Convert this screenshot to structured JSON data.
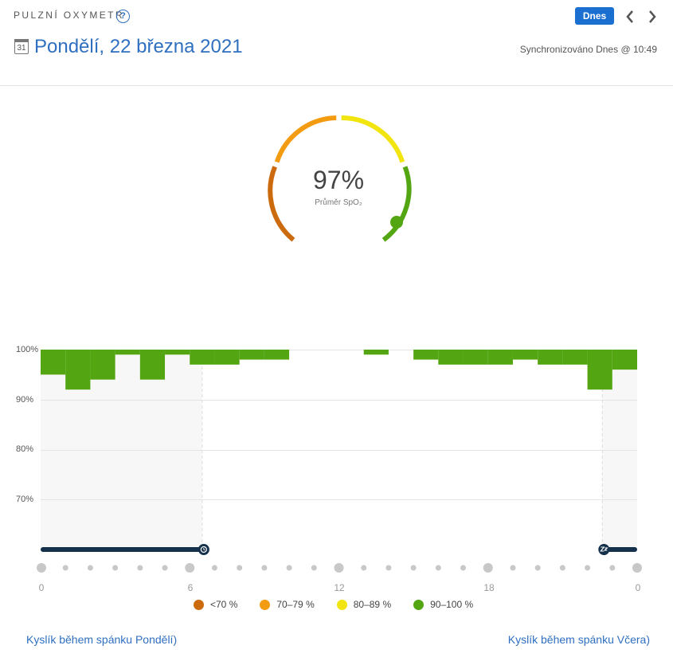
{
  "header": {
    "app_title": "PULZNÍ OXYMETR",
    "help_glyph": "?",
    "today_button": "Dnes",
    "prev_glyph": "‹",
    "next_glyph": "›",
    "calendar_day": "31",
    "date_title": "Pondělí, 22 března 2021",
    "sync_text": "Synchronizováno Dnes @ 10:49"
  },
  "gauge": {
    "value_text": "97%",
    "label": "Průměr SpO₂",
    "value": 97,
    "colors": {
      "dark_orange": "#cc6a0e",
      "orange": "#f39c12",
      "yellow": "#f1e40f",
      "green": "#53a612"
    }
  },
  "chart_data": {
    "type": "bar",
    "y_tick_labels": [
      "100%",
      "90%",
      "80%",
      "70%"
    ],
    "y_ticks": [
      100,
      90,
      80,
      70
    ],
    "ylim": [
      60,
      100
    ],
    "x_tick_labels": [
      "0",
      "6",
      "12",
      "18",
      "0"
    ],
    "bar_color": "#53a612",
    "bars": [
      {
        "hour": 0,
        "min": 95
      },
      {
        "hour": 1,
        "min": 92
      },
      {
        "hour": 2,
        "min": 94
      },
      {
        "hour": 3,
        "min": 99
      },
      {
        "hour": 4,
        "min": 94
      },
      {
        "hour": 5,
        "min": 99
      },
      {
        "hour": 6,
        "min": 97
      },
      {
        "hour": 7,
        "min": 97
      },
      {
        "hour": 8,
        "min": 98
      },
      {
        "hour": 9,
        "min": 98
      },
      {
        "hour": 13,
        "min": 99
      },
      {
        "hour": 15,
        "min": 98
      },
      {
        "hour": 16,
        "min": 97
      },
      {
        "hour": 17,
        "min": 97
      },
      {
        "hour": 18,
        "min": 97
      },
      {
        "hour": 19,
        "min": 98
      },
      {
        "hour": 20,
        "min": 97
      },
      {
        "hour": 21,
        "min": 97
      },
      {
        "hour": 22,
        "min": 92
      },
      {
        "hour": 23,
        "min": 96
      }
    ],
    "sleep_periods": [
      {
        "start": 0,
        "end": 6.5
      },
      {
        "start": 22.6,
        "end": 24
      }
    ],
    "sleep_bar_color": "#14304a"
  },
  "legend": [
    {
      "label": "<70 %",
      "color": "#cc6a0e"
    },
    {
      "label": "70–79 %",
      "color": "#f39c12"
    },
    {
      "label": "80–89 %",
      "color": "#f1e40f"
    },
    {
      "label": "90–100 %",
      "color": "#53a612"
    }
  ],
  "footer": {
    "left_link": "Kyslík během spánku Pondělí)",
    "right_link": "Kyslík během spánku Včera)"
  }
}
